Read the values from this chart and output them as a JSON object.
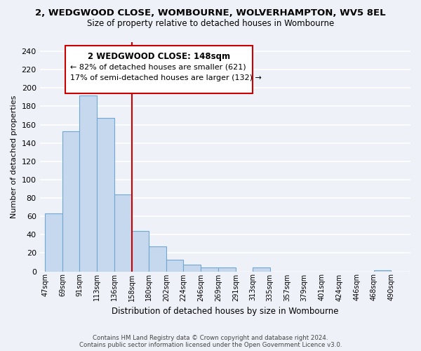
{
  "title": "2, WEDGWOOD CLOSE, WOMBOURNE, WOLVERHAMPTON, WV5 8EL",
  "subtitle": "Size of property relative to detached houses in Wombourne",
  "xlabel": "Distribution of detached houses by size in Wombourne",
  "ylabel": "Number of detached properties",
  "footer_line1": "Contains HM Land Registry data © Crown copyright and database right 2024.",
  "footer_line2": "Contains public sector information licensed under the Open Government Licence v3.0.",
  "annotation_title": "2 WEDGWOOD CLOSE: 148sqm",
  "annotation_line1": "← 82% of detached houses are smaller (621)",
  "annotation_line2": "17% of semi-detached houses are larger (132) →",
  "bar_labels": [
    "47sqm",
    "69sqm",
    "91sqm",
    "113sqm",
    "136sqm",
    "158sqm",
    "180sqm",
    "202sqm",
    "224sqm",
    "246sqm",
    "269sqm",
    "291sqm",
    "313sqm",
    "335sqm",
    "357sqm",
    "379sqm",
    "401sqm",
    "424sqm",
    "446sqm",
    "468sqm",
    "490sqm"
  ],
  "bar_left_edges": [
    47,
    69,
    91,
    113,
    136,
    158,
    180,
    202,
    224,
    246,
    269,
    291,
    313,
    335,
    357,
    379,
    401,
    424,
    446,
    468,
    490
  ],
  "bar_widths": [
    22,
    22,
    22,
    23,
    22,
    22,
    22,
    22,
    22,
    23,
    22,
    22,
    22,
    22,
    22,
    22,
    23,
    22,
    22,
    22,
    22
  ],
  "bar_heights": [
    63,
    153,
    192,
    167,
    84,
    44,
    27,
    13,
    7,
    4,
    4,
    0,
    4,
    0,
    0,
    0,
    0,
    0,
    0,
    1,
    0
  ],
  "bar_color": "#c5d8ed",
  "bar_edge_color": "#6fa8d5",
  "vline_color": "#cc0000",
  "vline_x": 158,
  "annotation_box_color": "#cc0000",
  "background_color": "#eef2f8",
  "grid_color": "#ffffff",
  "ylim": [
    0,
    250
  ],
  "yticks": [
    0,
    20,
    40,
    60,
    80,
    100,
    120,
    140,
    160,
    180,
    200,
    220,
    240
  ]
}
